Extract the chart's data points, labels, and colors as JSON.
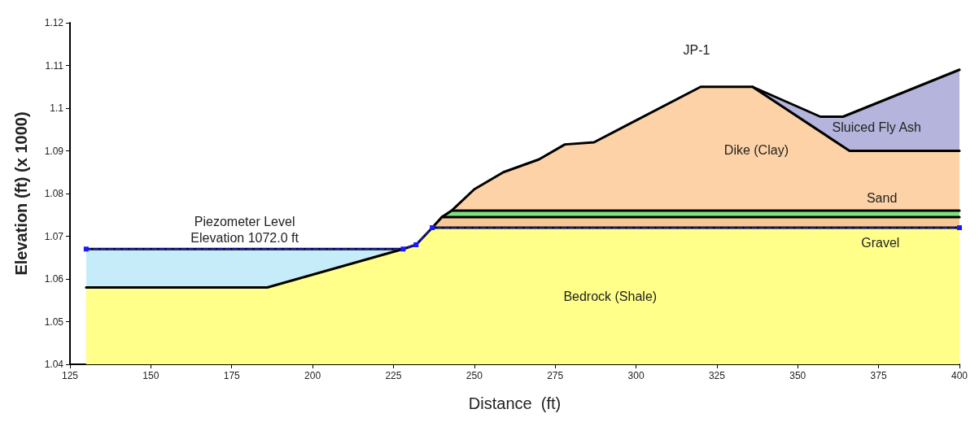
{
  "chart_data": {
    "type": "area",
    "xlabel": "Distance  (ft)",
    "ylabel": "Elevation (ft) (x 1000)",
    "xlim": [
      125,
      400
    ],
    "xticks": [
      125,
      150,
      175,
      200,
      225,
      250,
      275,
      300,
      325,
      350,
      375,
      400
    ],
    "ylim": [
      1.04,
      1.12
    ],
    "yticks": [
      1.04,
      1.05,
      1.06,
      1.07,
      1.08,
      1.09,
      1.1,
      1.11,
      1.12
    ],
    "grid": false,
    "series": [
      {
        "color": "#c7ecf9",
        "x": [
          130,
          228
        ],
        "values": [
          1.067,
          1.067
        ]
      },
      {
        "name": "Sluiced Fly Ash",
        "color": "#b4b4dc",
        "x": [
          336,
          357,
          364,
          400
        ],
        "values": [
          1.105,
          1.098,
          1.098,
          1.109
        ]
      },
      {
        "name": "Dike (Clay)",
        "color": "#fdd2a6",
        "x": [
          243,
          250,
          259,
          270,
          278,
          287,
          320,
          336,
          366,
          400
        ],
        "values": [
          1.076,
          1.081,
          1.085,
          1.088,
          1.0915,
          1.092,
          1.105,
          1.105,
          1.09,
          1.09
        ]
      },
      {
        "name": "Sand",
        "color": "#80e27e",
        "x": [
          240,
          243,
          400
        ],
        "values": [
          1.0745,
          1.076,
          1.076
        ]
      },
      {
        "name": "Gravel",
        "color": "#f5c896",
        "x": [
          237,
          240,
          400
        ],
        "values": [
          1.072,
          1.0745,
          1.0745
        ]
      },
      {
        "name": "Bedrock (Shale)",
        "color": "#ffff8a",
        "x": [
          130,
          186,
          228,
          232,
          237,
          400
        ],
        "values": [
          1.058,
          1.058,
          1.067,
          1.068,
          1.072,
          1.072
        ]
      },
      {
        "type": "line",
        "name": "Piezometer Level\nElevation 1072.0 ft",
        "color": "#1a1aff",
        "line_style": "dashed",
        "marker": "square",
        "x": [
          130,
          228,
          232,
          237,
          400
        ],
        "values": [
          1.067,
          1.067,
          1.068,
          1.072,
          1.072
        ]
      }
    ],
    "annotations": [
      "JP-1"
    ]
  }
}
